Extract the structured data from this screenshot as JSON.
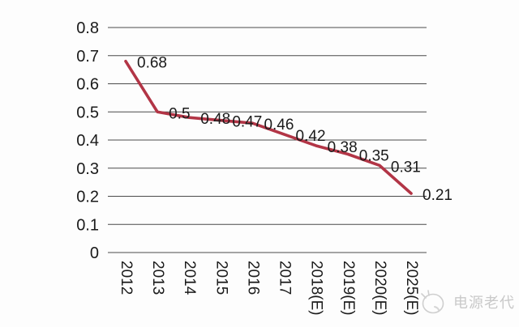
{
  "chart_data": {
    "type": "line",
    "categories": [
      "2012",
      "2013",
      "2014",
      "2015",
      "2016",
      "2017",
      "2018(E)",
      "2019(E)",
      "2020(E)",
      "2025(E)"
    ],
    "values": [
      0.68,
      0.5,
      0.48,
      0.47,
      0.46,
      0.42,
      0.38,
      0.35,
      0.31,
      0.21
    ],
    "point_labels": [
      "0.68",
      "0.5",
      "0.48",
      "0.47",
      "0.46",
      "0.42",
      "0.38",
      "0.35",
      "0.31",
      "0.21"
    ],
    "title": "",
    "xlabel": "",
    "ylabel": "",
    "ylim": [
      0,
      0.8
    ],
    "ytick_step": 0.1,
    "ytick_labels": [
      "0",
      "0.1",
      "0.2",
      "0.3",
      "0.4",
      "0.5",
      "0.6",
      "0.7",
      "0.8"
    ],
    "grid": "horizontal",
    "legend": "none",
    "x_tick_rotation_deg": 90,
    "line_color": "#b23546",
    "grid_color": "#4b4b4b",
    "text_color": "#1a1a1a"
  },
  "watermark": {
    "text": "电源老代",
    "icon": "scribble-logo-icon",
    "color": "#c9c9c9"
  }
}
